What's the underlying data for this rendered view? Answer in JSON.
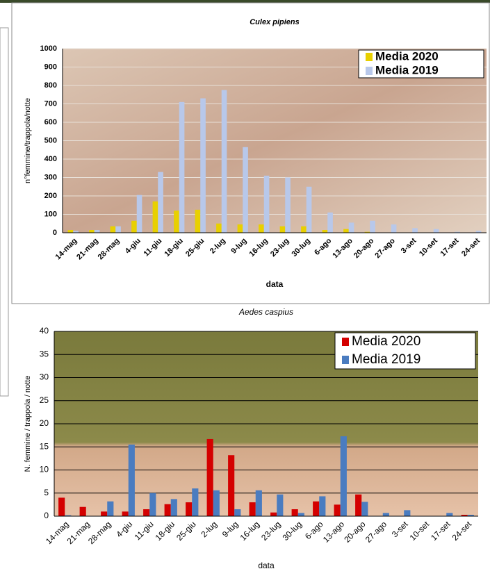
{
  "chart_data": [
    {
      "type": "bar",
      "title": "Culex pipiens",
      "x_label": "data",
      "y_label": "n°femmine/trappola/notte",
      "categories": [
        "14-mag",
        "21-mag",
        "28-mag",
        "4-giu",
        "11-giu",
        "18-giu",
        "25-giu",
        "2-lug",
        "9-lug",
        "16-lug",
        "23-lug",
        "30-lug",
        "6-ago",
        "13-ago",
        "20-ago",
        "27-ago",
        "3-set",
        "10-set",
        "17-set",
        "24-set"
      ],
      "series": [
        {
          "name": "Media 2020",
          "color": "#e8d000",
          "values": [
            15,
            15,
            35,
            65,
            170,
            120,
            125,
            50,
            45,
            45,
            35,
            35,
            15,
            20,
            5,
            0,
            0,
            0,
            0,
            0
          ]
        },
        {
          "name": "Media 2019",
          "color": "#b8c8ea",
          "values": [
            10,
            15,
            35,
            205,
            330,
            710,
            730,
            775,
            465,
            310,
            300,
            250,
            110,
            55,
            65,
            45,
            25,
            20,
            5,
            10
          ]
        }
      ],
      "ylim": [
        0,
        1000
      ],
      "yticks": [
        0,
        100,
        200,
        300,
        400,
        500,
        600,
        700,
        800,
        900,
        1000
      ],
      "grid": true,
      "grid_color": "#e8e0d8",
      "legend": "upper right"
    },
    {
      "type": "bar",
      "title": "Aedes caspius",
      "x_label": "data",
      "y_label": "N. femmine / trappola / notte",
      "categories": [
        "14-mag",
        "21-mag",
        "28-mag",
        "4-giu",
        "11-giu",
        "18-giu",
        "25-giu",
        "2-lug",
        "9-lug",
        "16-lug",
        "23-lug",
        "30-lug",
        "6-ago",
        "13-ago",
        "20-ago",
        "27-ago",
        "3-set",
        "10-set",
        "17-set",
        "24-set"
      ],
      "series": [
        {
          "name": "Media 2020",
          "color": "#d40000",
          "values": [
            4,
            2,
            1,
            1,
            1.5,
            2.6,
            3,
            16.7,
            13.2,
            3,
            0.8,
            1.5,
            3.2,
            2.5,
            4.7,
            0,
            0,
            0,
            0,
            0.3
          ]
        },
        {
          "name": "Media 2019",
          "color": "#4a7cc0",
          "values": [
            0.2,
            0,
            3.2,
            15.5,
            5,
            3.7,
            6,
            5.6,
            1.5,
            5.6,
            4.7,
            0.7,
            4.3,
            17.3,
            3.1,
            0.7,
            1.3,
            0,
            0.7,
            0.3
          ]
        }
      ],
      "ylim": [
        0,
        40
      ],
      "yticks": [
        0,
        5,
        10,
        15,
        20,
        25,
        30,
        35,
        40
      ],
      "grid": true,
      "grid_color": "#000000",
      "legend": "upper right"
    }
  ]
}
